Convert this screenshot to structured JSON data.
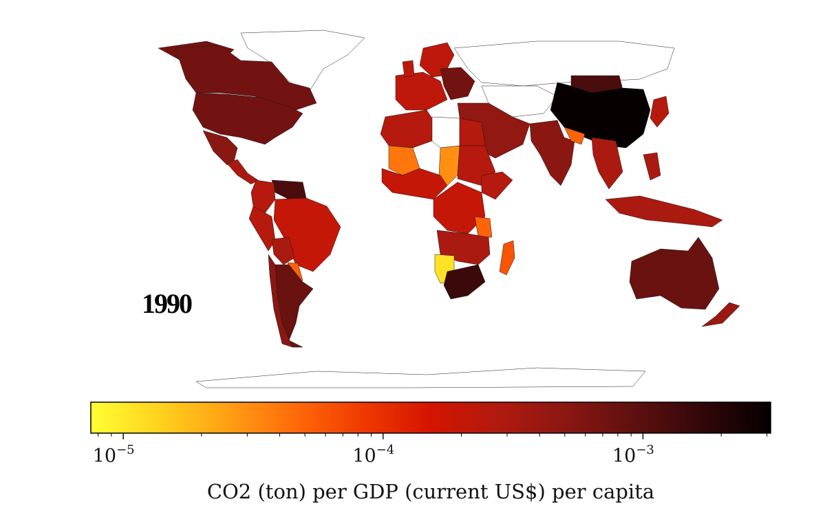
{
  "year": "1990",
  "colorbar": {
    "title": "CO2 (ton) per GDP (current US$) per capita",
    "scale": "log",
    "range": [
      7.5e-06,
      0.0031
    ],
    "major_ticks": [
      {
        "base": "10",
        "exp": "−5",
        "value": 1e-05
      },
      {
        "base": "10",
        "exp": "−4",
        "value": 0.0001
      },
      {
        "base": "10",
        "exp": "−3",
        "value": 0.001
      }
    ],
    "colormap": [
      "#ffff33",
      "#ffd21e",
      "#ffa014",
      "#ff6a0a",
      "#f03a00",
      "#d41400",
      "#b01a10",
      "#8a1712",
      "#5e1010",
      "#320708",
      "#050000"
    ]
  },
  "regions": [
    {
      "name": "Canada",
      "value": 0.0007
    },
    {
      "name": "United States",
      "value": 0.0007
    },
    {
      "name": "Mexico",
      "value": 0.0005
    },
    {
      "name": "Central America",
      "value": 0.0003
    },
    {
      "name": "Guyana region",
      "value": 0.0012
    },
    {
      "name": "Colombia",
      "value": 0.00025
    },
    {
      "name": "Brazil",
      "value": 0.0002
    },
    {
      "name": "Peru",
      "value": 0.00025
    },
    {
      "name": "Bolivia",
      "value": 0.0003
    },
    {
      "name": "Paraguay",
      "value": 5e-05
    },
    {
      "name": "Argentina",
      "value": 0.0008
    },
    {
      "name": "Chile",
      "value": 0.0005
    },
    {
      "name": "Western Europe",
      "value": 0.00022
    },
    {
      "name": "Eastern Europe",
      "value": 0.0007
    },
    {
      "name": "North Africa",
      "value": 0.00025
    },
    {
      "name": "Mali",
      "value": 4e-05
    },
    {
      "name": "Chad",
      "value": 3e-05
    },
    {
      "name": "Libya",
      "value": null
    },
    {
      "name": "Egypt",
      "value": 0.00025
    },
    {
      "name": "Sudan",
      "value": 0.00025
    },
    {
      "name": "Central Africa",
      "value": 0.0002
    },
    {
      "name": "Tanzania",
      "value": 5e-05
    },
    {
      "name": "Southern Africa",
      "value": 0.0003
    },
    {
      "name": "Namibia",
      "value": 1.1e-05
    },
    {
      "name": "South Africa",
      "value": 0.0015
    },
    {
      "name": "Madagascar",
      "value": 6e-05
    },
    {
      "name": "Middle East",
      "value": 0.00045
    },
    {
      "name": "Russia",
      "value": null
    },
    {
      "name": "Central Asia",
      "value": null
    },
    {
      "name": "China",
      "value": 0.003
    },
    {
      "name": "Mongolia",
      "value": 0.0012
    },
    {
      "name": "India",
      "value": 0.0005
    },
    {
      "name": "Myanmar",
      "value": 5e-05
    },
    {
      "name": "Southeast Asia",
      "value": 0.0003
    },
    {
      "name": "Japan",
      "value": 0.00025
    },
    {
      "name": "Indonesia",
      "value": 0.0003
    },
    {
      "name": "Australia",
      "value": 0.0008
    },
    {
      "name": "New Zealand",
      "value": 0.0004
    },
    {
      "name": "Greenland",
      "value": null
    },
    {
      "name": "Antarctica",
      "value": null
    }
  ]
}
